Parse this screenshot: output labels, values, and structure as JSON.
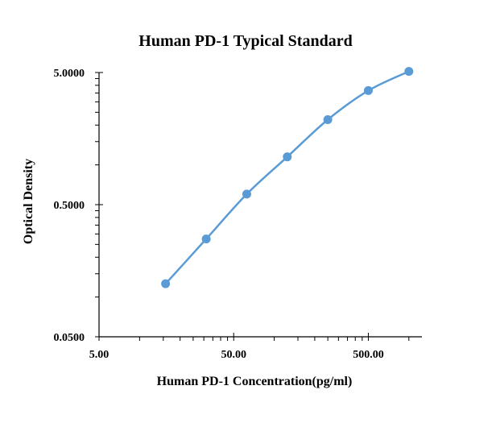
{
  "chart_data": {
    "type": "scatter",
    "title": "Human PD-1 Typical Standard",
    "xlabel": "Human PD-1 Concentration(pg/ml)",
    "ylabel": "Optical Density",
    "x_scale": "log",
    "y_scale": "log",
    "xlim": [
      5,
      1250
    ],
    "ylim": [
      0.05,
      5
    ],
    "x_ticks": [
      5,
      50,
      500
    ],
    "x_tick_labels": [
      "5.00",
      "50.00",
      "500.00"
    ],
    "y_ticks": [
      0.05,
      0.5,
      5
    ],
    "y_tick_labels": [
      "0.0500",
      "0.5000",
      "5.0000"
    ],
    "grid": false,
    "legend": "none",
    "series": [
      {
        "x": [
          15.6,
          31.25,
          62.5,
          125,
          250,
          500,
          1000
        ],
        "y": [
          0.126,
          0.275,
          0.601,
          1.15,
          2.2,
          3.65,
          5.1
        ],
        "color": "#5B9BD5",
        "marker": "circle",
        "smooth_line": true
      }
    ]
  }
}
